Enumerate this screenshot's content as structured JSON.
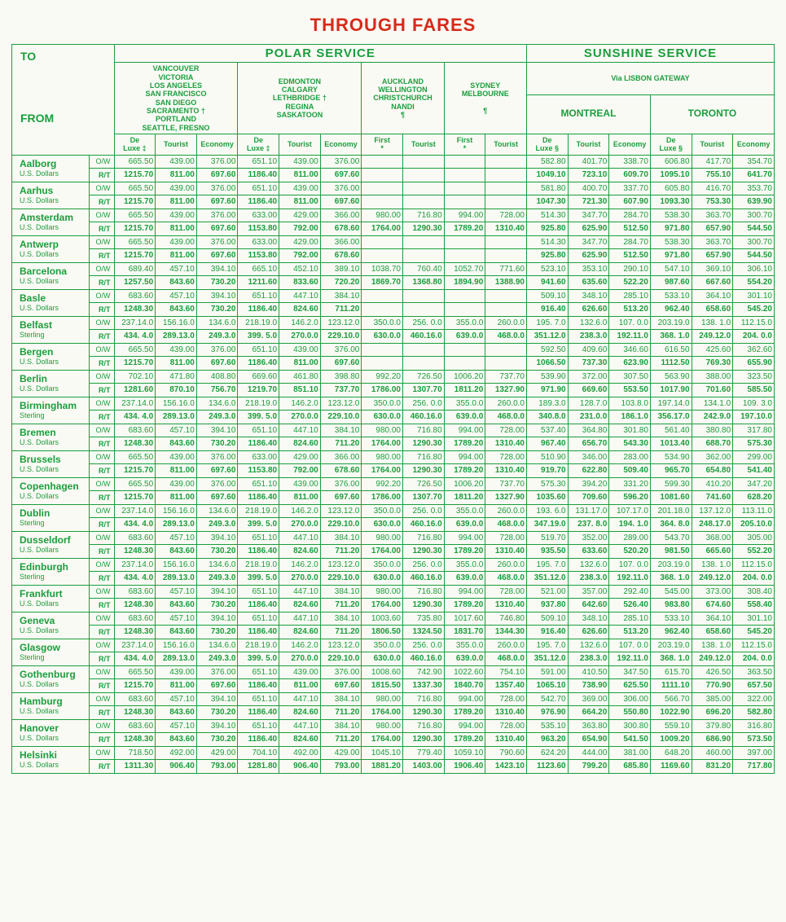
{
  "title": "THROUGH FARES",
  "groups": {
    "polar": "POLAR SERVICE",
    "sunshine": "SUNSHINE SERVICE"
  },
  "subhead": {
    "lisbon": "Via LISBON GATEWAY"
  },
  "dest_headers": [
    {
      "key": "vancouver",
      "lines": [
        "VANCOUVER",
        "VICTORIA",
        "LOS ANGELES",
        "SAN FRANCISCO",
        "SAN DIEGO",
        "SACRAMENTO †",
        "PORTLAND",
        "SEATTLE,    FRESNO"
      ],
      "classes": [
        "De Luxe ‡",
        "Tourist",
        "Economy"
      ]
    },
    {
      "key": "edmonton",
      "lines": [
        "EDMONTON",
        "CALGARY",
        "LETHBRIDGE †",
        "REGINA",
        "SASKATOON"
      ],
      "classes": [
        "De Luxe ‡",
        "Tourist",
        "Economy"
      ]
    },
    {
      "key": "auckland",
      "lines": [
        "AUCKLAND",
        "WELLINGTON",
        "CHRISTCHURCH",
        "NANDI",
        "¶"
      ],
      "classes": [
        "First *",
        "Tourist"
      ]
    },
    {
      "key": "sydney",
      "lines": [
        "SYDNEY",
        "MELBOURNE",
        "",
        "¶"
      ],
      "classes": [
        "First *",
        "Tourist"
      ]
    },
    {
      "key": "montreal",
      "lines": [
        "MONTREAL"
      ],
      "classes": [
        "De Luxe §",
        "Tourist",
        "Economy"
      ]
    },
    {
      "key": "toronto",
      "lines": [
        "TORONTO"
      ],
      "classes": [
        "De Luxe §",
        "Tourist",
        "Economy"
      ]
    }
  ],
  "tofrom": {
    "to": "TO",
    "from": "FROM"
  },
  "rowlabels": {
    "ow": "O/W",
    "rt": "R/T"
  },
  "rows": [
    {
      "city": "Aalborg",
      "cur": "U.S. Dollars",
      "ow": [
        "665.50",
        "439.00",
        "376.00",
        "651.10",
        "439.00",
        "376.00",
        "",
        "",
        "",
        "",
        "582.80",
        "401.70",
        "338.70",
        "606.80",
        "417.70",
        "354.70"
      ],
      "rt": [
        "1215.70",
        "811.00",
        "697.60",
        "1186.40",
        "811.00",
        "697.60",
        "",
        "",
        "",
        "",
        "1049.10",
        "723.10",
        "609.70",
        "1095.10",
        "755.10",
        "641.70"
      ]
    },
    {
      "city": "Aarhus",
      "cur": "U.S. Dollars",
      "ow": [
        "665.50",
        "439.00",
        "376.00",
        "651.10",
        "439.00",
        "376.00",
        "",
        "",
        "",
        "",
        "581.80",
        "400.70",
        "337.70",
        "605.80",
        "416.70",
        "353.70"
      ],
      "rt": [
        "1215.70",
        "811.00",
        "697.60",
        "1186.40",
        "811.00",
        "697.60",
        "",
        "",
        "",
        "",
        "1047.30",
        "721.30",
        "607.90",
        "1093.30",
        "753.30",
        "639.90"
      ]
    },
    {
      "city": "Amsterdam",
      "cur": "U.S. Dollars",
      "ow": [
        "665.50",
        "439.00",
        "376.00",
        "633.00",
        "429.00",
        "366.00",
        "980.00",
        "716.80",
        "994.00",
        "728.00",
        "514.30",
        "347.70",
        "284.70",
        "538.30",
        "363.70",
        "300.70"
      ],
      "rt": [
        "1215.70",
        "811.00",
        "697.60",
        "1153.80",
        "792.00",
        "678.60",
        "1764.00",
        "1290.30",
        "1789.20",
        "1310.40",
        "925.80",
        "625.90",
        "512.50",
        "971.80",
        "657.90",
        "544.50"
      ]
    },
    {
      "city": "Antwerp",
      "cur": "U.S. Dollars",
      "ow": [
        "665.50",
        "439.00",
        "376.00",
        "633.00",
        "429.00",
        "366.00",
        "",
        "",
        "",
        "",
        "514.30",
        "347.70",
        "284.70",
        "538.30",
        "363.70",
        "300.70"
      ],
      "rt": [
        "1215.70",
        "811.00",
        "697.60",
        "1153.80",
        "792.00",
        "678.60",
        "",
        "",
        "",
        "",
        "925.80",
        "625.90",
        "512.50",
        "971.80",
        "657.90",
        "544.50"
      ]
    },
    {
      "city": "Barcelona",
      "cur": "U.S. Dollars",
      "ow": [
        "689.40",
        "457.10",
        "394.10",
        "665.10",
        "452.10",
        "389.10",
        "1038.70",
        "760.40",
        "1052.70",
        "771.60",
        "523.10",
        "353.10",
        "290.10",
        "547.10",
        "369.10",
        "306.10"
      ],
      "rt": [
        "1257.50",
        "843.60",
        "730.20",
        "1211.60",
        "833.60",
        "720.20",
        "1869.70",
        "1368.80",
        "1894.90",
        "1388.90",
        "941.60",
        "635.60",
        "522.20",
        "987.60",
        "667.60",
        "554.20"
      ]
    },
    {
      "city": "Basle",
      "cur": "U.S. Dollars",
      "ow": [
        "683.60",
        "457.10",
        "394.10",
        "651.10",
        "447.10",
        "384.10",
        "",
        "",
        "",
        "",
        "509.10",
        "348.10",
        "285.10",
        "533.10",
        "364.10",
        "301.10"
      ],
      "rt": [
        "1248.30",
        "843.60",
        "730.20",
        "1186.40",
        "824.60",
        "711.20",
        "",
        "",
        "",
        "",
        "916.40",
        "626.60",
        "513.20",
        "962.40",
        "658.60",
        "545.20"
      ]
    },
    {
      "city": "Belfast",
      "cur": "Sterling",
      "ow": [
        "237.14.0",
        "156.16.0",
        "134.6.0",
        "218.19.0",
        "146.2.0",
        "123.12.0",
        "350.0.0",
        "256. 0.0",
        "355.0.0",
        "260.0.0",
        "195. 7.0",
        "132.6.0",
        "107. 0.0",
        "203.19.0",
        "138. 1.0",
        "112.15.0"
      ],
      "rt": [
        "434. 4.0",
        "289.13.0",
        "249.3.0",
        "399. 5.0",
        "270.0.0",
        "229.10.0",
        "630.0.0",
        "460.16.0",
        "639.0.0",
        "468.0.0",
        "351.12.0",
        "238.3.0",
        "192.11.0",
        "368. 1.0",
        "249.12.0",
        "204. 0.0"
      ]
    },
    {
      "city": "Bergen",
      "cur": "U.S. Dollars",
      "ow": [
        "665.50",
        "439.00",
        "376.00",
        "651.10",
        "439.00",
        "376.00",
        "",
        "",
        "",
        "",
        "592.50",
        "409.60",
        "346.60",
        "616.50",
        "425.60",
        "362.60"
      ],
      "rt": [
        "1215.70",
        "811.00",
        "697.60",
        "1186.40",
        "811.00",
        "697.60",
        "",
        "",
        "",
        "",
        "1066.50",
        "737.30",
        "623.90",
        "1112.50",
        "769.30",
        "655.90"
      ]
    },
    {
      "city": "Berlin",
      "cur": "U.S. Dollars",
      "ow": [
        "702.10",
        "471.80",
        "408.80",
        "669.60",
        "461.80",
        "398.80",
        "992.20",
        "726.50",
        "1006.20",
        "737.70",
        "539.90",
        "372.00",
        "307.50",
        "563.90",
        "388.00",
        "323.50"
      ],
      "rt": [
        "1281.60",
        "870.10",
        "756.70",
        "1219.70",
        "851.10",
        "737.70",
        "1786.00",
        "1307.70",
        "1811.20",
        "1327.90",
        "971.90",
        "669.60",
        "553.50",
        "1017.90",
        "701.60",
        "585.50"
      ]
    },
    {
      "city": "Birmingham",
      "cur": "Sterling",
      "ow": [
        "237.14.0",
        "156.16.0",
        "134.6.0",
        "218.19.0",
        "146.2.0",
        "123.12.0",
        "350.0.0",
        "256. 0.0",
        "355.0.0",
        "260.0.0",
        "189.3.0",
        "128.7.0",
        "103.8.0",
        "197.14.0",
        "134.1.0",
        "109. 3.0"
      ],
      "rt": [
        "434. 4.0",
        "289.13.0",
        "249.3.0",
        "399. 5.0",
        "270.0.0",
        "229.10.0",
        "630.0.0",
        "460.16.0",
        "639.0.0",
        "468.0.0",
        "340.8.0",
        "231.0.0",
        "186.1.0",
        "356.17.0",
        "242.9.0",
        "197.10.0"
      ]
    },
    {
      "city": "Bremen",
      "cur": "U.S. Dollars",
      "ow": [
        "683.60",
        "457.10",
        "394.10",
        "651.10",
        "447.10",
        "384.10",
        "980.00",
        "716.80",
        "994.00",
        "728.00",
        "537.40",
        "364.80",
        "301.80",
        "561.40",
        "380.80",
        "317.80"
      ],
      "rt": [
        "1248.30",
        "843.60",
        "730.20",
        "1186.40",
        "824.60",
        "711.20",
        "1764.00",
        "1290.30",
        "1789.20",
        "1310.40",
        "967.40",
        "656.70",
        "543.30",
        "1013.40",
        "688.70",
        "575.30"
      ]
    },
    {
      "city": "Brussels",
      "cur": "U.S. Dollars",
      "ow": [
        "665.50",
        "439.00",
        "376.00",
        "633.00",
        "429.00",
        "366.00",
        "980.00",
        "716.80",
        "994.00",
        "728.00",
        "510.90",
        "346.00",
        "283.00",
        "534.90",
        "362.00",
        "299.00"
      ],
      "rt": [
        "1215.70",
        "811.00",
        "697.60",
        "1153.80",
        "792.00",
        "678.60",
        "1764.00",
        "1290.30",
        "1789.20",
        "1310.40",
        "919.70",
        "622.80",
        "509.40",
        "965.70",
        "654.80",
        "541.40"
      ]
    },
    {
      "city": "Copenhagen",
      "cur": "U.S. Dollars",
      "ow": [
        "665.50",
        "439.00",
        "376.00",
        "651.10",
        "439.00",
        "376.00",
        "992.20",
        "726.50",
        "1006.20",
        "737.70",
        "575.30",
        "394.20",
        "331.20",
        "599.30",
        "410.20",
        "347.20"
      ],
      "rt": [
        "1215.70",
        "811.00",
        "697.60",
        "1186.40",
        "811.00",
        "697.60",
        "1786.00",
        "1307.70",
        "1811.20",
        "1327.90",
        "1035.60",
        "709.60",
        "596.20",
        "1081.60",
        "741.60",
        "628.20"
      ]
    },
    {
      "city": "Dublin",
      "cur": "Sterling",
      "ow": [
        "237.14.0",
        "156.16.0",
        "134.6.0",
        "218.19.0",
        "146.2.0",
        "123.12.0",
        "350.0.0",
        "256. 0.0",
        "355.0.0",
        "260.0.0",
        "193. 6.0",
        "131.17.0",
        "107.17.0",
        "201.18.0",
        "137.12.0",
        "113.11.0"
      ],
      "rt": [
        "434. 4.0",
        "289.13.0",
        "249.3.0",
        "399. 5.0",
        "270.0.0",
        "229.10.0",
        "630.0.0",
        "460.16.0",
        "639.0.0",
        "468.0.0",
        "347.19.0",
        "237. 8.0",
        "194. 1.0",
        "364. 8.0",
        "248.17.0",
        "205.10.0"
      ]
    },
    {
      "city": "Dusseldorf",
      "cur": "U.S. Dollars",
      "ow": [
        "683.60",
        "457.10",
        "394.10",
        "651.10",
        "447.10",
        "384.10",
        "980.00",
        "716.80",
        "994.00",
        "728.00",
        "519.70",
        "352.00",
        "289.00",
        "543.70",
        "368.00",
        "305.00"
      ],
      "rt": [
        "1248.30",
        "843.60",
        "730.20",
        "1186.40",
        "824.60",
        "711.20",
        "1764.00",
        "1290.30",
        "1789.20",
        "1310.40",
        "935.50",
        "633.60",
        "520.20",
        "981.50",
        "665.60",
        "552.20"
      ]
    },
    {
      "city": "Edinburgh",
      "cur": "Sterling",
      "ow": [
        "237.14.0",
        "156.16.0",
        "134.6.0",
        "218.19.0",
        "146.2.0",
        "123.12.0",
        "350.0.0",
        "256. 0.0",
        "355.0.0",
        "260.0.0",
        "195. 7.0",
        "132.6.0",
        "107. 0.0",
        "203.19.0",
        "138. 1.0",
        "112.15.0"
      ],
      "rt": [
        "434. 4.0",
        "289.13.0",
        "249.3.0",
        "399. 5.0",
        "270.0.0",
        "229.10.0",
        "630.0.0",
        "460.16.0",
        "639.0.0",
        "468.0.0",
        "351.12.0",
        "238.3.0",
        "192.11.0",
        "368. 1.0",
        "249.12.0",
        "204. 0.0"
      ]
    },
    {
      "city": "Frankfurt",
      "cur": "U.S. Dollars",
      "ow": [
        "683.60",
        "457.10",
        "394.10",
        "651.10",
        "447.10",
        "384.10",
        "980.00",
        "716.80",
        "994.00",
        "728.00",
        "521.00",
        "357.00",
        "292.40",
        "545.00",
        "373.00",
        "308.40"
      ],
      "rt": [
        "1248.30",
        "843.60",
        "730.20",
        "1186.40",
        "824.60",
        "711.20",
        "1764.00",
        "1290.30",
        "1789.20",
        "1310.40",
        "937.80",
        "642.60",
        "526.40",
        "983.80",
        "674.60",
        "558.40"
      ]
    },
    {
      "city": "Geneva",
      "cur": "U.S. Dollars",
      "ow": [
        "683.60",
        "457.10",
        "394.10",
        "651.10",
        "447.10",
        "384.10",
        "1003.60",
        "735.80",
        "1017.60",
        "746.80",
        "509.10",
        "348.10",
        "285.10",
        "533.10",
        "364.10",
        "301.10"
      ],
      "rt": [
        "1248.30",
        "843.60",
        "730.20",
        "1186.40",
        "824.60",
        "711.20",
        "1806.50",
        "1324.50",
        "1831.70",
        "1344.30",
        "916.40",
        "626.60",
        "513.20",
        "962.40",
        "658.60",
        "545.20"
      ]
    },
    {
      "city": "Glasgow",
      "cur": "Sterling",
      "ow": [
        "237.14.0",
        "156.16.0",
        "134.6.0",
        "218.19.0",
        "146.2.0",
        "123.12.0",
        "350.0.0",
        "256. 0.0",
        "355.0.0",
        "260.0.0",
        "195. 7.0",
        "132.6.0",
        "107. 0.0",
        "203.19.0",
        "138. 1.0",
        "112.15.0"
      ],
      "rt": [
        "434. 4.0",
        "289.13.0",
        "249.3.0",
        "399. 5.0",
        "270.0.0",
        "229.10.0",
        "630.0.0",
        "460.16.0",
        "639.0.0",
        "468.0.0",
        "351.12.0",
        "238.3.0",
        "192.11.0",
        "368. 1.0",
        "249.12.0",
        "204. 0.0"
      ]
    },
    {
      "city": "Gothenburg",
      "cur": "U.S. Dollars",
      "ow": [
        "665.50",
        "439.00",
        "376.00",
        "651.10",
        "439.00",
        "376.00",
        "1008.60",
        "742.90",
        "1022.60",
        "754.10",
        "591.00",
        "410.50",
        "347.50",
        "615.70",
        "426.50",
        "363.50"
      ],
      "rt": [
        "1215.70",
        "811.00",
        "697.60",
        "1186.40",
        "811.00",
        "697.60",
        "1815.50",
        "1337.30",
        "1840.70",
        "1357.40",
        "1065.10",
        "738.90",
        "625.50",
        "1111.10",
        "770.90",
        "657.50"
      ]
    },
    {
      "city": "Hamburg",
      "cur": "U.S. Dollars",
      "ow": [
        "683.60",
        "457.10",
        "394.10",
        "651.10",
        "447.10",
        "384.10",
        "980.00",
        "716.80",
        "994.00",
        "728.00",
        "542.70",
        "369.00",
        "306.00",
        "566.70",
        "385.00",
        "322.00"
      ],
      "rt": [
        "1248.30",
        "843.60",
        "730.20",
        "1186.40",
        "824.60",
        "711.20",
        "1764.00",
        "1290.30",
        "1789.20",
        "1310.40",
        "976.90",
        "664.20",
        "550.80",
        "1022.90",
        "696.20",
        "582.80"
      ]
    },
    {
      "city": "Hanover",
      "cur": "U.S. Dollars",
      "ow": [
        "683.60",
        "457.10",
        "394.10",
        "651.10",
        "447.10",
        "384.10",
        "980.00",
        "716.80",
        "994.00",
        "728.00",
        "535.10",
        "363.80",
        "300.80",
        "559.10",
        "379.80",
        "316.80"
      ],
      "rt": [
        "1248.30",
        "843.60",
        "730.20",
        "1186.40",
        "824.60",
        "711.20",
        "1764.00",
        "1290.30",
        "1789.20",
        "1310.40",
        "963.20",
        "654.90",
        "541.50",
        "1009.20",
        "686.90",
        "573.50"
      ]
    },
    {
      "city": "Helsinki",
      "cur": "U.S. Dollars",
      "ow": [
        "718.50",
        "492.00",
        "429.00",
        "704.10",
        "492.00",
        "429.00",
        "1045.10",
        "779.40",
        "1059.10",
        "790.60",
        "624.20",
        "444.00",
        "381.00",
        "648.20",
        "460.00",
        "397.00"
      ],
      "rt": [
        "1311.30",
        "906.40",
        "793.00",
        "1281.80",
        "906.40",
        "793.00",
        "1881.20",
        "1403.00",
        "1906.40",
        "1423.10",
        "1123.60",
        "799.20",
        "685.80",
        "1169.60",
        "831.20",
        "717.80"
      ]
    }
  ],
  "style": {
    "green": "#1a9e3c",
    "red": "#d62b1a",
    "bg": "#fafaf5"
  }
}
